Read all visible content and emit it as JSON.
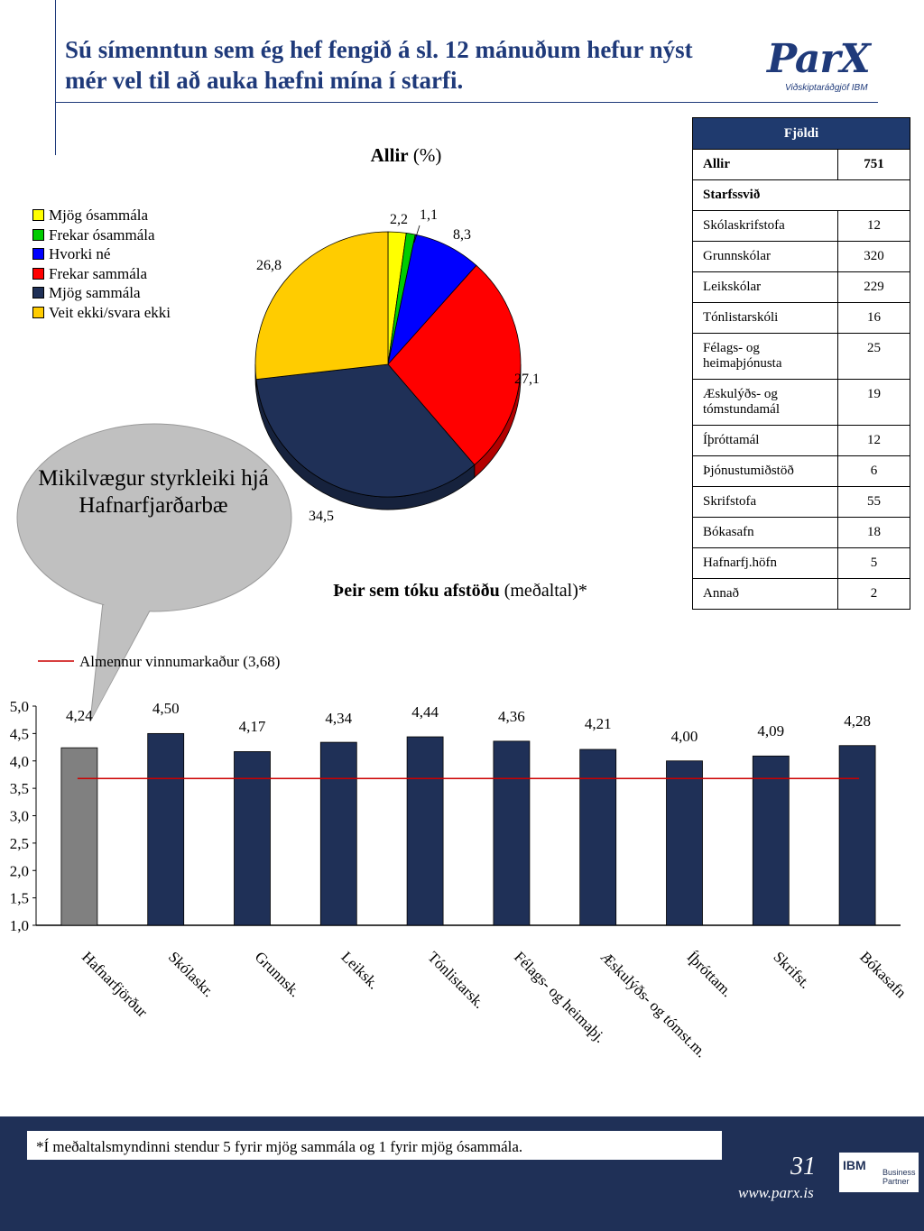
{
  "header": {
    "title": "Sú símenntun sem ég hef fengið á sl. 12 mánuðum hefur nýst mér vel til að auka hæfni mína í starfi.",
    "logo_main": "ParX",
    "logo_sub": "Viðskiptaráðgjöf IBM"
  },
  "pie": {
    "title_bold": "Allir",
    "title_rest": "(%)"
  },
  "table": {
    "header": "Fjöldi",
    "allir_label": "Allir",
    "allir_value": "751",
    "group_label": "Starfssvið",
    "rows": [
      {
        "label": "Skólaskrifstofa",
        "value": "12"
      },
      {
        "label": "Grunnskólar",
        "value": "320"
      },
      {
        "label": "Leikskólar",
        "value": "229"
      },
      {
        "label": "Tónlistarskóli",
        "value": "16"
      },
      {
        "label": "Félags- og heimaþjónusta",
        "value": "25"
      },
      {
        "label": "Æskulýðs- og tómstundamál",
        "value": "19"
      },
      {
        "label": "Íþróttamál",
        "value": "12"
      },
      {
        "label": "Þjónustumiðstöð",
        "value": "6"
      },
      {
        "label": "Skrifstofa",
        "value": "55"
      },
      {
        "label": "Bókasafn",
        "value": "18"
      },
      {
        "label": "Hafnarfj.höfn",
        "value": "5"
      },
      {
        "label": "Annað",
        "value": "2"
      }
    ]
  },
  "bubble": {
    "text": "Mikilvægur styrkleiki hjá Hafnarfjarðarbæ"
  },
  "bar": {
    "title_bold": "Þeir sem tóku afstöðu",
    "title_rest": "(meðaltal)*",
    "reference_label": "Almennur vinnumarkaður (3,68)"
  },
  "footer": {
    "footnote": "*Í meðaltalsmyndinni stendur 5 fyrir mjög sammála og 1 fyrir mjög ósammála.",
    "page_number": "31",
    "website": "www.parx.is",
    "ibm": "IBM",
    "ibm_bp": "Business Partner"
  },
  "chart_data": [
    {
      "type": "pie",
      "title": "Allir (%)",
      "categories": [
        "Mjög ósammála",
        "Frekar ósammála",
        "Hvorki né",
        "Frekar sammála",
        "Mjög sammála",
        "Veit ekki/svara ekki"
      ],
      "values": [
        2.2,
        1.1,
        8.3,
        27.1,
        34.5,
        26.8
      ],
      "value_labels": [
        "2,2",
        "1,1",
        "8,3",
        "27,1",
        "34,5",
        "26,8"
      ],
      "colors": [
        "#ffff00",
        "#00cc00",
        "#0000ff",
        "#ff0000",
        "#1f3057",
        "#ffcc00"
      ],
      "legend": "left"
    },
    {
      "type": "bar",
      "title": "Þeir sem tóku afstöðu (meðaltal)*",
      "categories": [
        "Hafnarfjörður",
        "Skólaskr.",
        "Grunnsk.",
        "Leiksk.",
        "Tónlistarsk.",
        "Félags- og heimaþj.",
        "Æskulýðs- og tómst.m.",
        "Íþróttam.",
        "Skrifst.",
        "Bókasafn"
      ],
      "values": [
        4.24,
        4.5,
        4.17,
        4.34,
        4.44,
        4.36,
        4.21,
        4.0,
        4.09,
        4.28
      ],
      "value_labels": [
        "4,24",
        "4,50",
        "4,17",
        "4,34",
        "4,44",
        "4,36",
        "4,21",
        "4,00",
        "4,09",
        "4,28"
      ],
      "bar_colors": [
        "#808080",
        "#1f3057",
        "#1f3057",
        "#1f3057",
        "#1f3057",
        "#1f3057",
        "#1f3057",
        "#1f3057",
        "#1f3057",
        "#1f3057"
      ],
      "reference_line": {
        "label": "Almennur vinnumarkaður (3,68)",
        "value": 3.68,
        "color": "#cc0000"
      },
      "ylim": [
        1.0,
        5.0
      ],
      "yticks": [
        "1,0",
        "1,5",
        "2,0",
        "2,5",
        "3,0",
        "3,5",
        "4,0",
        "4,5",
        "5,0"
      ],
      "grid": false
    }
  ]
}
